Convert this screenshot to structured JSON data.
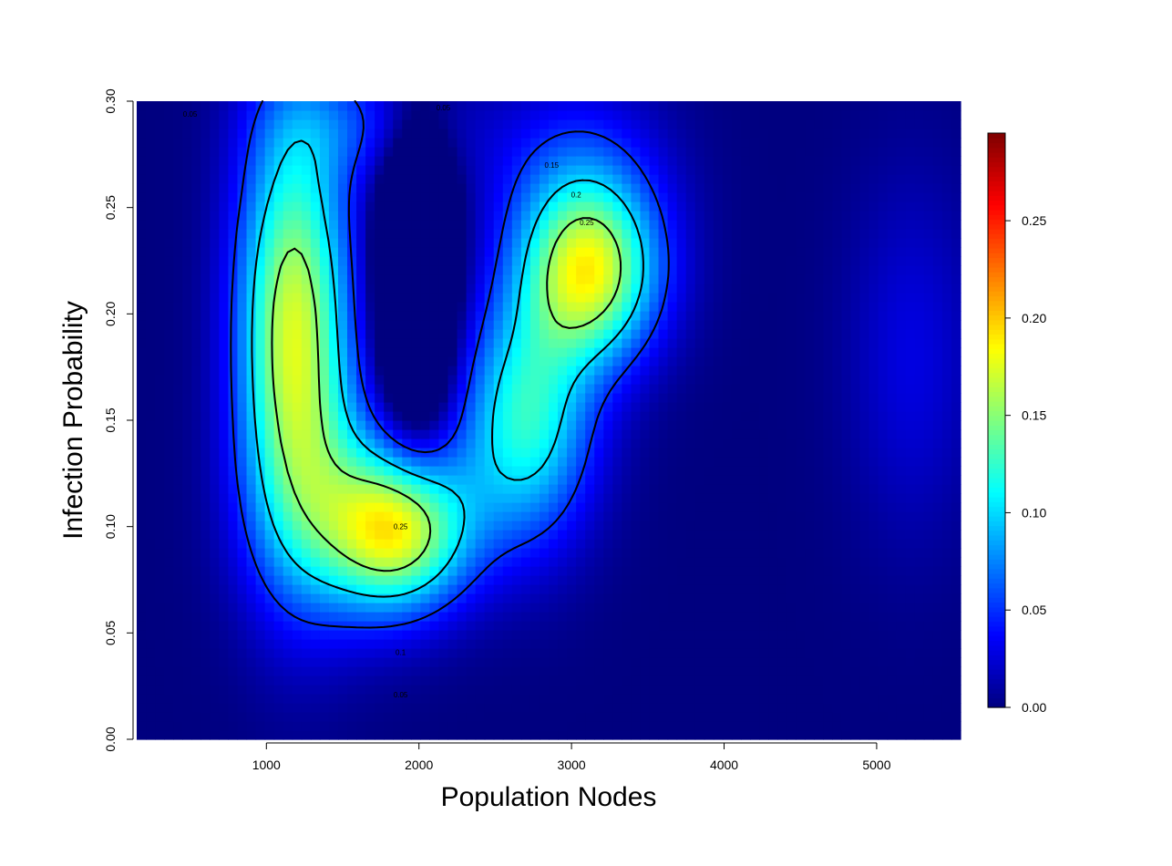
{
  "chart_data": {
    "type": "heatmap",
    "title": "",
    "xlabel": "Population Nodes",
    "ylabel": "Infection Probability",
    "xlim": [
      150,
      5550
    ],
    "ylim": [
      0.0,
      0.3
    ],
    "x_ticks": [
      {
        "value": 1000,
        "label": "1000"
      },
      {
        "value": 2000,
        "label": "2000"
      },
      {
        "value": 3000,
        "label": "3000"
      },
      {
        "value": 4000,
        "label": "4000"
      },
      {
        "value": 5000,
        "label": "5000"
      }
    ],
    "y_ticks": [
      {
        "value": 0.0,
        "label": "0.00"
      },
      {
        "value": 0.05,
        "label": "0.05"
      },
      {
        "value": 0.1,
        "label": "0.10"
      },
      {
        "value": 0.15,
        "label": "0.15"
      },
      {
        "value": 0.2,
        "label": "0.20"
      },
      {
        "value": 0.25,
        "label": "0.25"
      },
      {
        "value": 0.3,
        "label": "0.30"
      }
    ],
    "colorbar": {
      "range": [
        0.0,
        0.295
      ],
      "ticks": [
        {
          "value": 0.0,
          "label": "0.00"
        },
        {
          "value": 0.05,
          "label": "0.05"
        },
        {
          "value": 0.1,
          "label": "0.10"
        },
        {
          "value": 0.15,
          "label": "0.15"
        },
        {
          "value": 0.2,
          "label": "0.20"
        },
        {
          "value": 0.25,
          "label": "0.25"
        }
      ],
      "palette": [
        "#00007F",
        "#0000FF",
        "#007FFF",
        "#00FFFF",
        "#7FFF7F",
        "#FFFF00",
        "#FF7F00",
        "#FF0000",
        "#7F0000"
      ]
    },
    "contour_levels": [
      0.05,
      0.1,
      0.15,
      0.2,
      0.25
    ],
    "contour_labels": [
      {
        "label": "0.05",
        "x": 500,
        "y": 0.294
      },
      {
        "label": "0.05",
        "x": 2160,
        "y": 0.297
      },
      {
        "label": "0.05",
        "x": 1880,
        "y": 0.021
      },
      {
        "label": "0.1",
        "x": 1880,
        "y": 0.041
      },
      {
        "label": "0.15",
        "x": 2870,
        "y": 0.27
      },
      {
        "label": "0.2",
        "x": 3030,
        "y": 0.256
      },
      {
        "label": "0.25",
        "x": 3100,
        "y": 0.243
      },
      {
        "label": "0.25",
        "x": 1880,
        "y": 0.1
      }
    ],
    "grid": false,
    "legend": "colorbar-right"
  }
}
